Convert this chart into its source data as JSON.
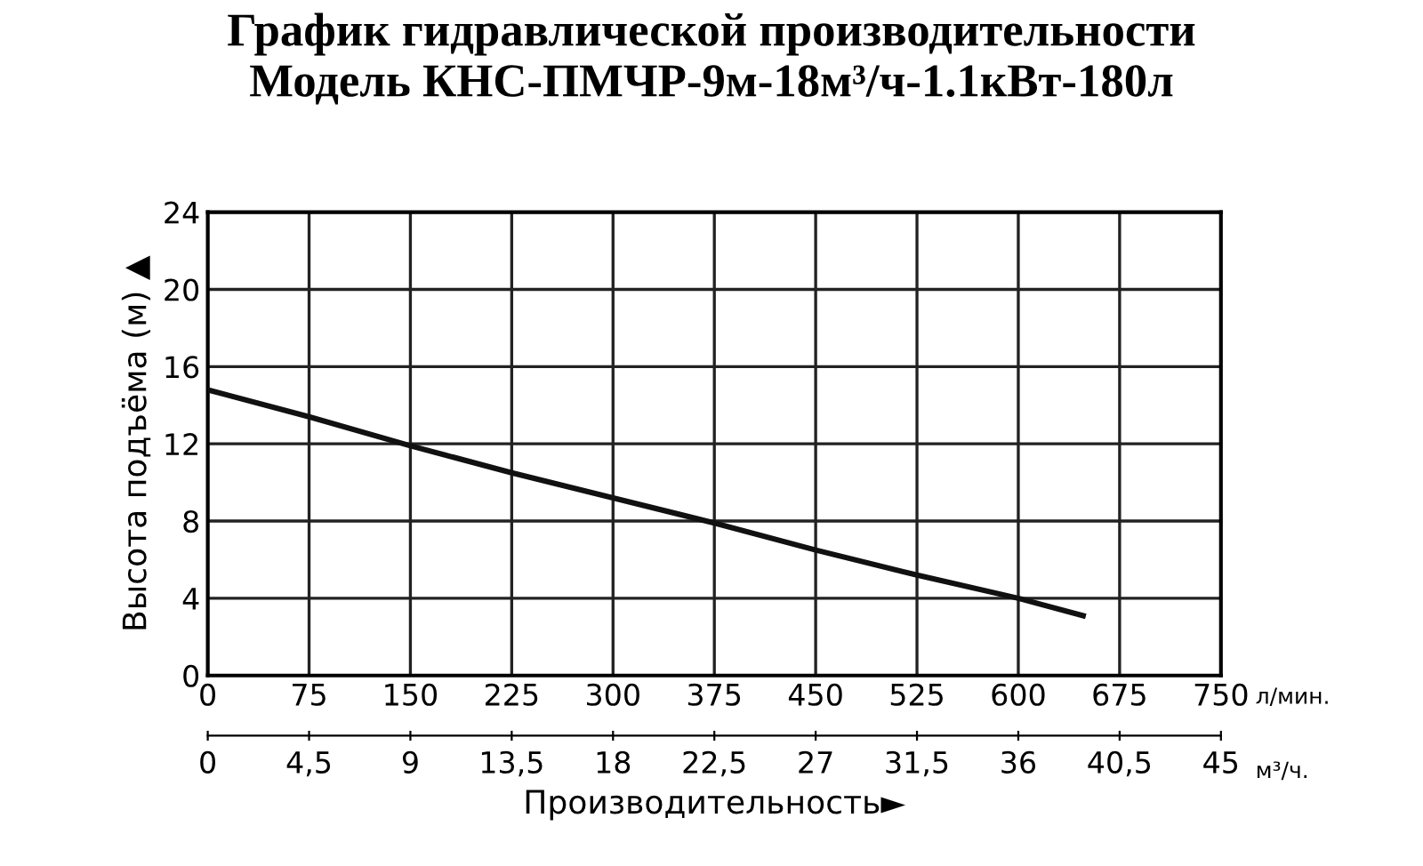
{
  "chart_data": {
    "type": "line",
    "title": "График гидравлической производительности\nМодель КНС-ПМЧР-9м-18м³/ч-1.1кВт-180л",
    "xlabel": "Производительность►",
    "ylabel": "Высота подъёма (м) ▲",
    "x": [
      0,
      75,
      150,
      225,
      300,
      375,
      450,
      525,
      600,
      648
    ],
    "series": [
      {
        "color": "#111111",
        "values": [
          14.8,
          13.4,
          11.9,
          10.5,
          9.2,
          7.9,
          6.5,
          5.2,
          4.0,
          3.1
        ]
      }
    ],
    "xlim": [
      0,
      750
    ],
    "xticks": [
      0,
      75,
      150,
      225,
      300,
      375,
      450,
      525,
      600,
      675,
      750
    ],
    "x2lim": [
      0,
      45
    ],
    "x2ticks": [
      0,
      {
        "value": 4.5,
        "label": "4,5"
      },
      9,
      {
        "value": 13.5,
        "label": "13,5"
      },
      18,
      {
        "value": 22.5,
        "label": "22,5"
      },
      27,
      {
        "value": 31.5,
        "label": "31,5"
      },
      36,
      {
        "value": 40.5,
        "label": "40,5"
      },
      45
    ],
    "ylim": [
      0,
      24
    ],
    "yticks": [
      0,
      4,
      8,
      12,
      16,
      20,
      24
    ],
    "annotations": [
      "л/мин.",
      "м³/ч."
    ],
    "grid": true,
    "marker": "none",
    "line_style": "solid",
    "legend": false
  }
}
